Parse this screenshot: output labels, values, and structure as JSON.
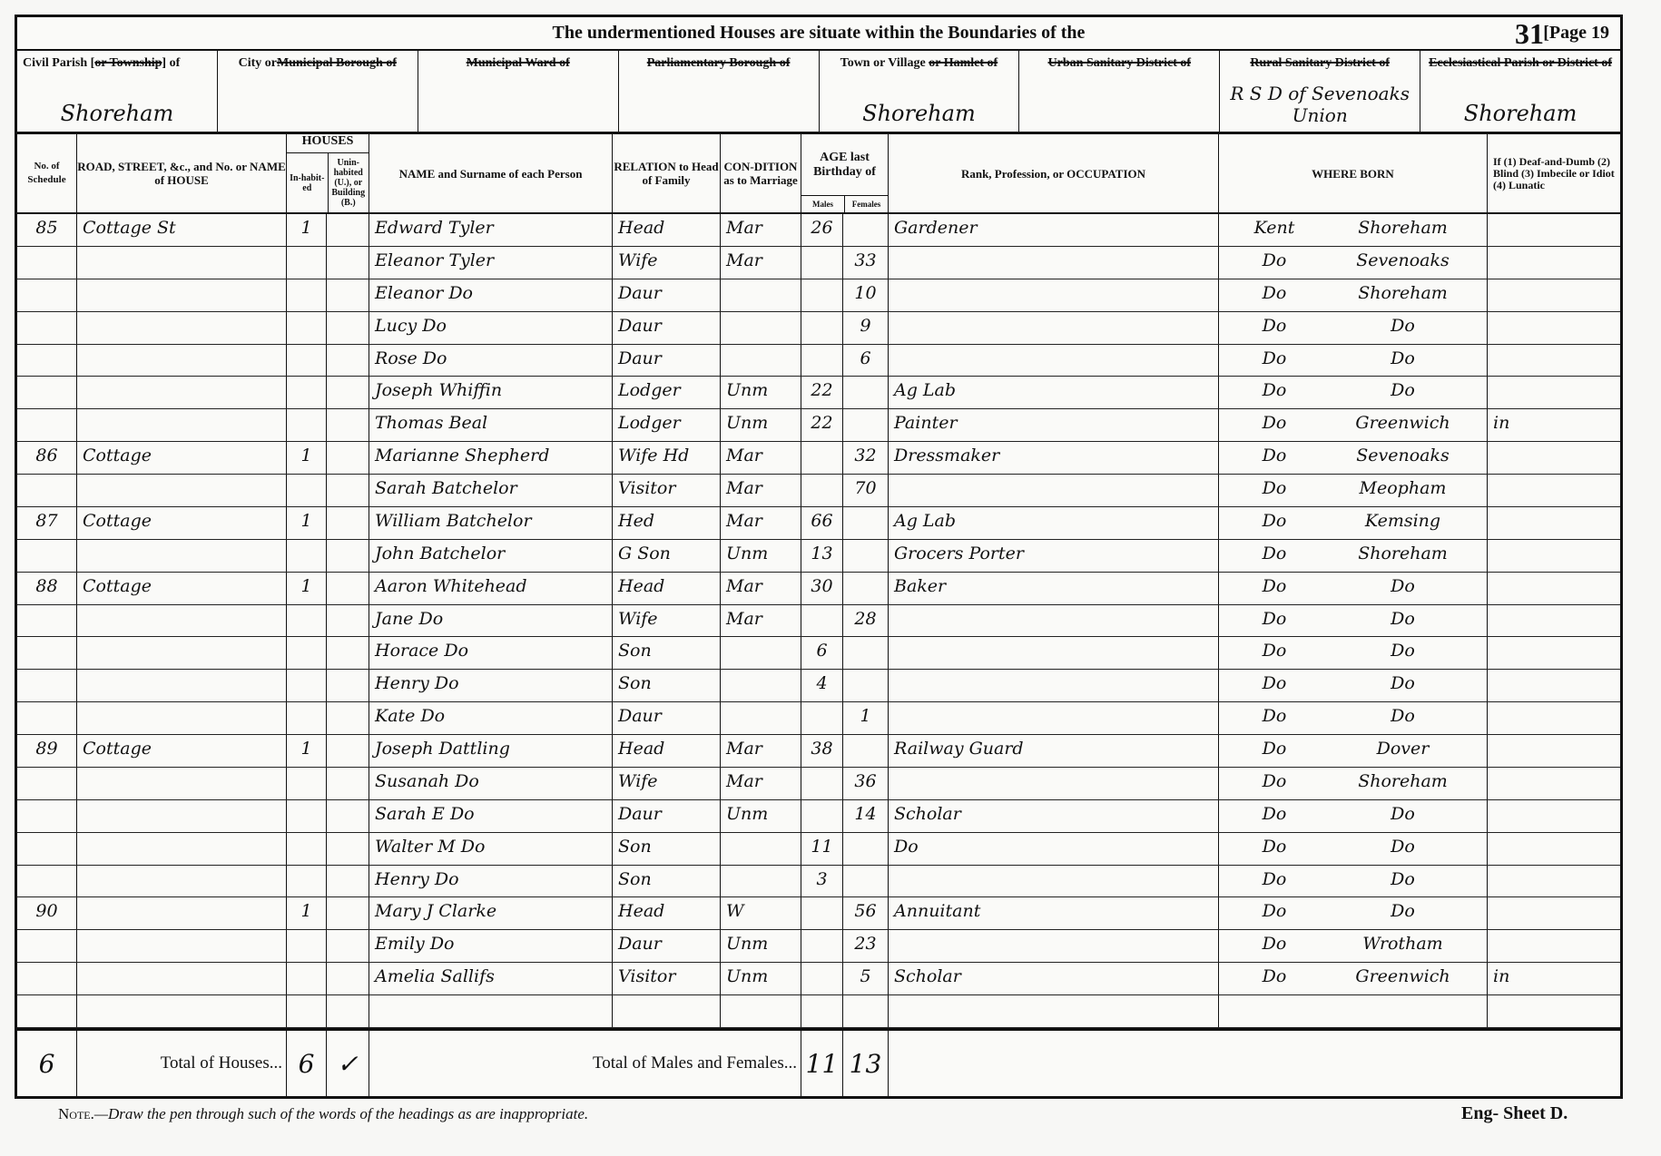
{
  "header": {
    "title": "The undermentioned Houses are situate within the Boundaries of the",
    "folio": "31",
    "page": "[Page 19"
  },
  "districts": [
    {
      "name": "civil-parish",
      "label": [
        {
          "t": "Civil Parish [",
          "s": false
        },
        {
          "t": "or Township",
          "s": true
        },
        {
          "t": "] of",
          "s": false
        }
      ],
      "value": "Shoreham"
    },
    {
      "name": "city-or-municipal-borough",
      "label": [
        {
          "t": "City or",
          "s": false
        },
        {
          "t": "Municipal Borough of",
          "s": true
        }
      ],
      "value": ""
    },
    {
      "name": "municipal-ward",
      "label": [
        {
          "t": "Municipal Ward of",
          "s": true
        }
      ],
      "value": ""
    },
    {
      "name": "parliamentary-borough",
      "label": [
        {
          "t": "Parliamentary Borough of",
          "s": true
        }
      ],
      "value": ""
    },
    {
      "name": "town-or-village",
      "label": [
        {
          "t": "Town or Village ",
          "s": false
        },
        {
          "t": "or Hamlet of",
          "s": true
        }
      ],
      "value": "Shoreham"
    },
    {
      "name": "urban-sanitary-district",
      "label": [
        {
          "t": "Urban Sanitary District of",
          "s": true
        }
      ],
      "value": ""
    },
    {
      "name": "rural-sanitary-district",
      "label": [
        {
          "t": "Rural Sanitary District of",
          "s": true
        }
      ],
      "value": "R S D of Sevenoaks Union"
    },
    {
      "name": "ecclesiastical-parish",
      "label": [
        {
          "t": "Ecclesiastical Parish or District of",
          "s": true
        }
      ],
      "value": "Shoreham"
    }
  ],
  "columns": {
    "schedule": "No. of Schedule",
    "road": "ROAD, STREET, &c., and No. or NAME of HOUSE",
    "houses": "HOUSES",
    "inhabited": "In-habit-ed",
    "uninhabited": "Unin-habited (U.), or Building (B.)",
    "name": "NAME and Surname of each Person",
    "relation": "RELATION to Head of Family",
    "condition": "CON-DITION as to Marriage",
    "age": "AGE last Birthday of",
    "males": "Males",
    "females": "Females",
    "occupation": "Rank, Profession, or OCCUPATION",
    "where_born": "WHERE BORN",
    "infirmity": "If (1) Deaf-and-Dumb (2) Blind (3) Imbecile or Idiot (4) Lunatic"
  },
  "rows": [
    {
      "schedule": "85",
      "road": "Cottage St",
      "inhabited": "1",
      "uninhabited": "",
      "name": "Edward Tyler",
      "relation": "Head",
      "condition": "Mar",
      "males": "26",
      "females": "",
      "occupation": "Gardener",
      "born_county": "Kent",
      "born_place": "Shoreham",
      "infirmity": ""
    },
    {
      "schedule": "",
      "road": "",
      "inhabited": "",
      "uninhabited": "",
      "name": "Eleanor Tyler",
      "relation": "Wife",
      "condition": "Mar",
      "males": "",
      "females": "33",
      "occupation": "",
      "born_county": "Do",
      "born_place": "Sevenoaks",
      "infirmity": ""
    },
    {
      "schedule": "",
      "road": "",
      "inhabited": "",
      "uninhabited": "",
      "name": "Eleanor Do",
      "relation": "Daur",
      "condition": "",
      "males": "",
      "females": "10",
      "occupation": "",
      "born_county": "Do",
      "born_place": "Shoreham",
      "infirmity": ""
    },
    {
      "schedule": "",
      "road": "",
      "inhabited": "",
      "uninhabited": "",
      "name": "Lucy Do",
      "relation": "Daur",
      "condition": "",
      "males": "",
      "females": "9",
      "occupation": "",
      "born_county": "Do",
      "born_place": "Do",
      "infirmity": ""
    },
    {
      "schedule": "",
      "road": "",
      "inhabited": "",
      "uninhabited": "",
      "name": "Rose Do",
      "relation": "Daur",
      "condition": "",
      "males": "",
      "females": "6",
      "occupation": "",
      "born_county": "Do",
      "born_place": "Do",
      "infirmity": ""
    },
    {
      "schedule": "",
      "road": "",
      "inhabited": "",
      "uninhabited": "",
      "name": "Joseph Whiffin",
      "relation": "Lodger",
      "condition": "Unm",
      "males": "22",
      "females": "",
      "occupation": "Ag Lab",
      "born_county": "Do",
      "born_place": "Do",
      "infirmity": ""
    },
    {
      "schedule": "",
      "road": "",
      "inhabited": "",
      "uninhabited": "",
      "name": "Thomas Beal",
      "relation": "Lodger",
      "condition": "Unm",
      "males": "22",
      "females": "",
      "occupation": "Painter",
      "born_county": "Do",
      "born_place": "Greenwich",
      "infirmity": "in"
    },
    {
      "schedule": "86",
      "road": "Cottage",
      "inhabited": "1",
      "uninhabited": "",
      "name": "Marianne Shepherd",
      "relation": "Wife Hd",
      "condition": "Mar",
      "males": "",
      "females": "32",
      "occupation": "Dressmaker",
      "born_county": "Do",
      "born_place": "Sevenoaks",
      "infirmity": ""
    },
    {
      "schedule": "",
      "road": "",
      "inhabited": "",
      "uninhabited": "",
      "name": "Sarah Batchelor",
      "relation": "Visitor",
      "condition": "Mar",
      "males": "",
      "females": "70",
      "occupation": "",
      "born_county": "Do",
      "born_place": "Meopham",
      "infirmity": ""
    },
    {
      "schedule": "87",
      "road": "Cottage",
      "inhabited": "1",
      "uninhabited": "",
      "name": "William Batchelor",
      "relation": "Hed",
      "condition": "Mar",
      "males": "66",
      "females": "",
      "occupation": "Ag Lab",
      "born_county": "Do",
      "born_place": "Kemsing",
      "infirmity": ""
    },
    {
      "schedule": "",
      "road": "",
      "inhabited": "",
      "uninhabited": "",
      "name": "John Batchelor",
      "relation": "G Son",
      "condition": "Unm",
      "males": "13",
      "females": "",
      "occupation": "Grocers Porter",
      "born_county": "Do",
      "born_place": "Shoreham",
      "infirmity": ""
    },
    {
      "schedule": "88",
      "road": "Cottage",
      "inhabited": "1",
      "uninhabited": "",
      "name": "Aaron Whitehead",
      "relation": "Head",
      "condition": "Mar",
      "males": "30",
      "females": "",
      "occupation": "Baker",
      "born_county": "Do",
      "born_place": "Do",
      "infirmity": ""
    },
    {
      "schedule": "",
      "road": "",
      "inhabited": "",
      "uninhabited": "",
      "name": "Jane Do",
      "relation": "Wife",
      "condition": "Mar",
      "males": "",
      "females": "28",
      "occupation": "",
      "born_county": "Do",
      "born_place": "Do",
      "infirmity": ""
    },
    {
      "schedule": "",
      "road": "",
      "inhabited": "",
      "uninhabited": "",
      "name": "Horace Do",
      "relation": "Son",
      "condition": "",
      "males": "6",
      "females": "",
      "occupation": "",
      "born_county": "Do",
      "born_place": "Do",
      "infirmity": ""
    },
    {
      "schedule": "",
      "road": "",
      "inhabited": "",
      "uninhabited": "",
      "name": "Henry Do",
      "relation": "Son",
      "condition": "",
      "males": "4",
      "females": "",
      "occupation": "",
      "born_county": "Do",
      "born_place": "Do",
      "infirmity": ""
    },
    {
      "schedule": "",
      "road": "",
      "inhabited": "",
      "uninhabited": "",
      "name": "Kate Do",
      "relation": "Daur",
      "condition": "",
      "males": "",
      "females": "1",
      "occupation": "",
      "born_county": "Do",
      "born_place": "Do",
      "infirmity": ""
    },
    {
      "schedule": "89",
      "road": "Cottage",
      "inhabited": "1",
      "uninhabited": "",
      "name": "Joseph Dattling",
      "relation": "Head",
      "condition": "Mar",
      "males": "38",
      "females": "",
      "occupation": "Railway Guard",
      "born_county": "Do",
      "born_place": "Dover",
      "infirmity": ""
    },
    {
      "schedule": "",
      "road": "",
      "inhabited": "",
      "uninhabited": "",
      "name": "Susanah Do",
      "relation": "Wife",
      "condition": "Mar",
      "males": "",
      "females": "36",
      "occupation": "",
      "born_county": "Do",
      "born_place": "Shoreham",
      "infirmity": ""
    },
    {
      "schedule": "",
      "road": "",
      "inhabited": "",
      "uninhabited": "",
      "name": "Sarah E Do",
      "relation": "Daur",
      "condition": "Unm",
      "males": "",
      "females": "14",
      "occupation": "Scholar",
      "born_county": "Do",
      "born_place": "Do",
      "infirmity": ""
    },
    {
      "schedule": "",
      "road": "",
      "inhabited": "",
      "uninhabited": "",
      "name": "Walter M Do",
      "relation": "Son",
      "condition": "",
      "males": "11",
      "females": "",
      "occupation": "Do",
      "born_county": "Do",
      "born_place": "Do",
      "infirmity": ""
    },
    {
      "schedule": "",
      "road": "",
      "inhabited": "",
      "uninhabited": "",
      "name": "Henry Do",
      "relation": "Son",
      "condition": "",
      "males": "3",
      "females": "",
      "occupation": "",
      "born_county": "Do",
      "born_place": "Do",
      "infirmity": ""
    },
    {
      "schedule": "90",
      "road": "",
      "inhabited": "1",
      "uninhabited": "",
      "name": "Mary J Clarke",
      "relation": "Head",
      "condition": "W",
      "males": "",
      "females": "56",
      "occupation": "Annuitant",
      "born_county": "Do",
      "born_place": "Do",
      "infirmity": ""
    },
    {
      "schedule": "",
      "road": "",
      "inhabited": "",
      "uninhabited": "",
      "name": "Emily Do",
      "relation": "Daur",
      "condition": "Unm",
      "males": "",
      "females": "23",
      "occupation": "",
      "born_county": "Do",
      "born_place": "Wrotham",
      "infirmity": ""
    },
    {
      "schedule": "",
      "road": "",
      "inhabited": "",
      "uninhabited": "",
      "name": "Amelia Sallifs",
      "relation": "Visitor",
      "condition": "Unm",
      "males": "",
      "females": "5",
      "occupation": "Scholar",
      "born_county": "Do",
      "born_place": "Greenwich",
      "infirmity": "in"
    },
    {
      "schedule": "",
      "road": "",
      "inhabited": "",
      "uninhabited": "",
      "name": "",
      "relation": "",
      "condition": "",
      "males": "",
      "females": "",
      "occupation": "",
      "born_county": "",
      "born_place": "",
      "infirmity": ""
    }
  ],
  "totals": {
    "schedule_count": "6",
    "houses_label": "Total of Houses...",
    "houses_inhabited": "6",
    "houses_uninhabited": "✓",
    "persons_label": "Total of Males and Females...",
    "males": "11",
    "females": "13"
  },
  "footer": {
    "note_prefix": "Note.",
    "note": "—Draw the pen through such of the words of the headings as are inappropriate.",
    "sheet": "Eng- Sheet D."
  }
}
